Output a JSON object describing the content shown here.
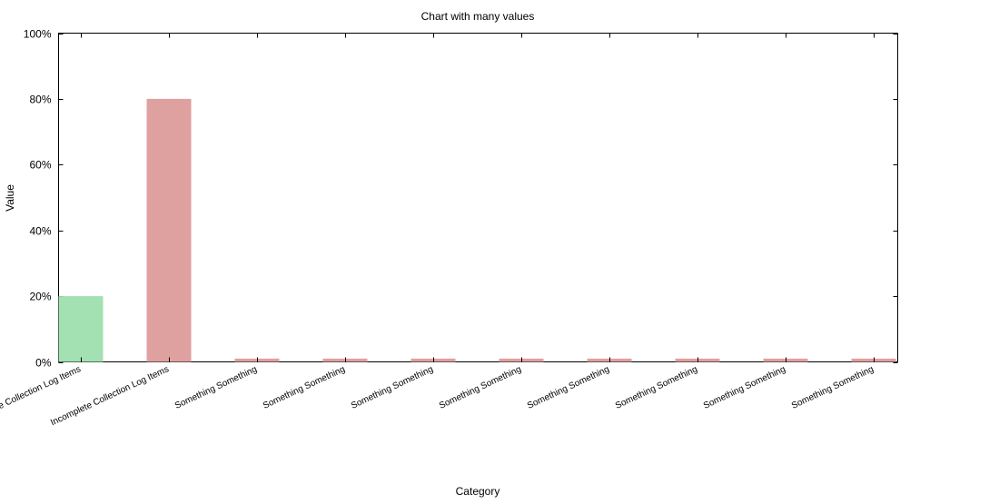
{
  "chart_data": {
    "type": "bar",
    "title": "Chart with many values",
    "xlabel": "Category",
    "ylabel": "Value",
    "ylim": [
      0,
      100
    ],
    "y_ticks": [
      0,
      20,
      40,
      60,
      80,
      100
    ],
    "y_tick_labels": [
      "0%",
      "20%",
      "40%",
      "60%",
      "80%",
      "100%"
    ],
    "grid": false,
    "categories": [
      "Complete Collection Log Items",
      "Incomplete Collection Log Items",
      "Something Something",
      "Something Something",
      "Something Something",
      "Something Something",
      "Something Something",
      "Something Something",
      "Something Something",
      "Something Something"
    ],
    "values": [
      20,
      80,
      1,
      1,
      1,
      1,
      1,
      1,
      1,
      1
    ],
    "colors": [
      "#a3e0b2",
      "#dfa0a0",
      "#dfa0a0",
      "#dfa0a0",
      "#dfa0a0",
      "#dfa0a0",
      "#dfa0a0",
      "#dfa0a0",
      "#dfa0a0",
      "#dfa0a0"
    ]
  }
}
